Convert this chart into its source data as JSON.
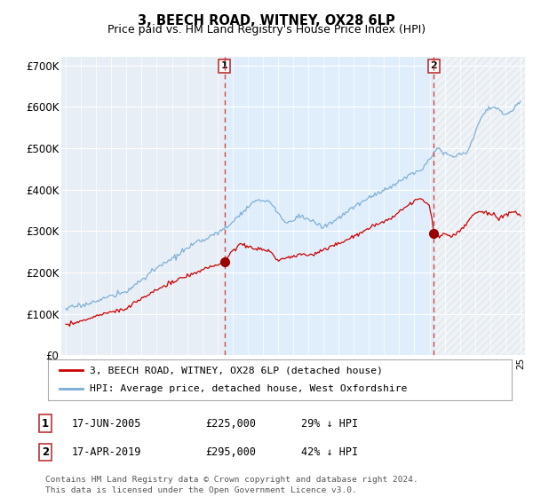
{
  "title": "3, BEECH ROAD, WITNEY, OX28 6LP",
  "subtitle": "Price paid vs. HM Land Registry's House Price Index (HPI)",
  "ylim": [
    0,
    720000
  ],
  "yticks": [
    0,
    100000,
    200000,
    300000,
    400000,
    500000,
    600000,
    700000
  ],
  "ytick_labels": [
    "£0",
    "£100K",
    "£200K",
    "£300K",
    "£400K",
    "£500K",
    "£600K",
    "£700K"
  ],
  "hpi_color": "#7aadd4",
  "hpi_fill_color": "#ddeeff",
  "price_color": "#cc0000",
  "marker_color": "#990000",
  "vline_color": "#cc3333",
  "background_color": "#e8eef5",
  "grid_color": "#ffffff",
  "sale1_x": 2005.46,
  "sale1_y": 225000,
  "sale2_x": 2019.29,
  "sale2_y": 295000,
  "legend_entry1": "3, BEECH ROAD, WITNEY, OX28 6LP (detached house)",
  "legend_entry2": "HPI: Average price, detached house, West Oxfordshire",
  "table_row1": [
    "1",
    "17-JUN-2005",
    "£225,000",
    "29% ↓ HPI"
  ],
  "table_row2": [
    "2",
    "17-APR-2019",
    "£295,000",
    "42% ↓ HPI"
  ],
  "footer": "Contains HM Land Registry data © Crown copyright and database right 2024.\nThis data is licensed under the Open Government Licence v3.0.",
  "xlim_left": 1994.7,
  "xlim_right": 2025.3
}
